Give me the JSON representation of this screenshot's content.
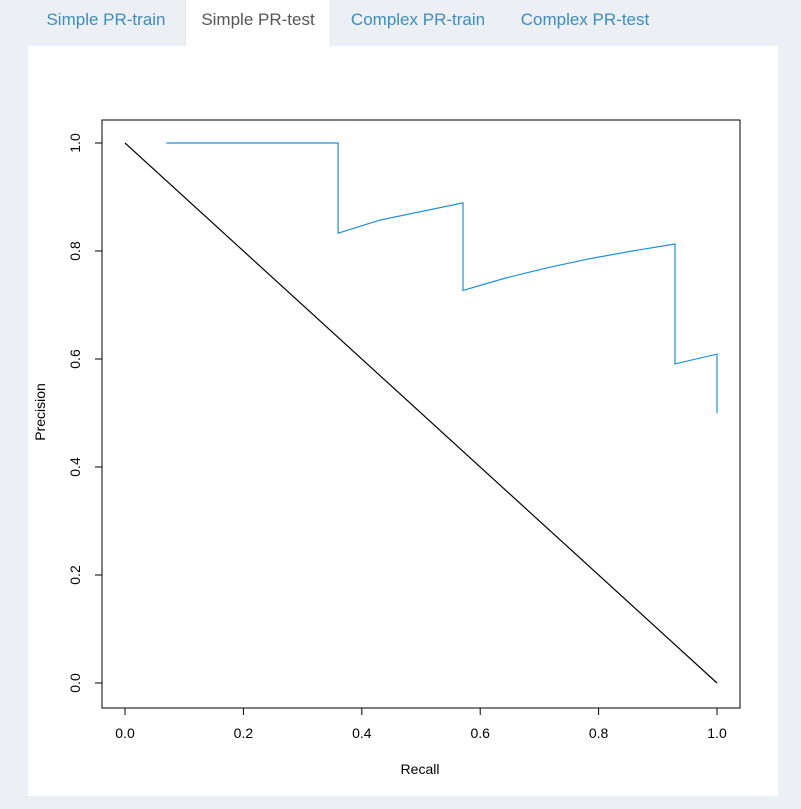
{
  "tabs": [
    {
      "label": "Simple PR-train",
      "active": false
    },
    {
      "label": "Simple PR-test",
      "active": true
    },
    {
      "label": "Complex PR-train",
      "active": false
    },
    {
      "label": "Complex PR-test",
      "active": false
    }
  ],
  "colors": {
    "curve": "#1f8fd6",
    "baseline": "#000000",
    "tab_link": "#3c8dbc",
    "tab_active_text": "#555555"
  },
  "chart_data": {
    "type": "line",
    "xlabel": "Recall",
    "ylabel": "Precision",
    "xlim": [
      0,
      1
    ],
    "ylim": [
      0,
      1
    ],
    "x_ticks": [
      "0.0",
      "0.2",
      "0.4",
      "0.6",
      "0.8",
      "1.0"
    ],
    "y_ticks": [
      "0.0",
      "0.2",
      "0.4",
      "0.6",
      "0.8",
      "1.0"
    ],
    "grid": false,
    "series": [
      {
        "role": "pr-curve",
        "x": [
          0.07,
          0.36,
          0.36,
          0.43,
          0.571,
          0.571,
          0.643,
          0.714,
          0.786,
          0.857,
          0.929,
          0.929,
          1.0,
          1.0
        ],
        "y": [
          1.0,
          1.0,
          0.833,
          0.857,
          0.889,
          0.727,
          0.75,
          0.769,
          0.786,
          0.8,
          0.813,
          0.591,
          0.609,
          0.5
        ]
      },
      {
        "role": "reference-line",
        "x": [
          0,
          1
        ],
        "y": [
          1,
          0
        ]
      }
    ]
  }
}
